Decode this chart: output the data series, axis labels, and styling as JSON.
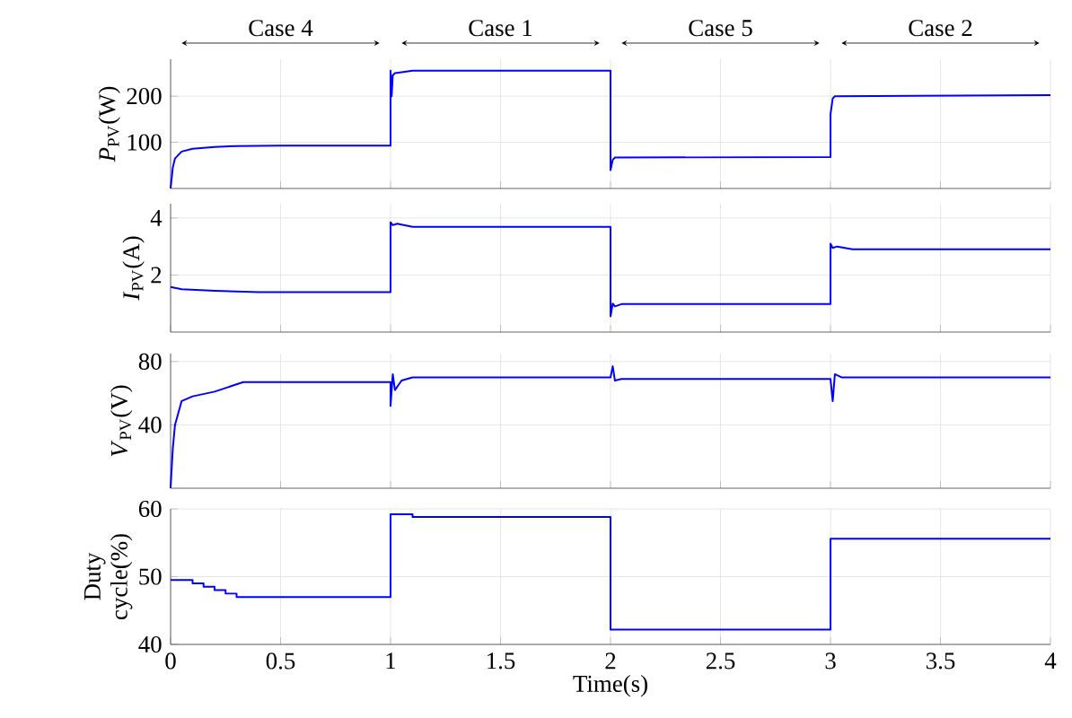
{
  "chart_data": [
    {
      "type": "line",
      "ylabel": "*P*$_{PV}$(W)",
      "xlim": [
        0,
        4
      ],
      "xticks": [
        0,
        0.5,
        1,
        1.5,
        2,
        2.5,
        3,
        3.5,
        4
      ],
      "ylim": [
        0,
        280
      ],
      "yticks": [
        100,
        200
      ],
      "grid": true,
      "tick_labels": "y",
      "annotations": [
        "Case 4",
        "Case 1",
        "Case 5",
        "Case 2"
      ],
      "series": [
        {
          "color": "#0000ff",
          "x": [
            0,
            0.01,
            0.02,
            0.05,
            0.1,
            0.2,
            0.3,
            0.5,
            1,
            1,
            1.005,
            1.01,
            1.02,
            1.05,
            1.1,
            2,
            2,
            2.01,
            2.02,
            3,
            3,
            3.01,
            3.02,
            4
          ],
          "values": [
            0,
            45,
            65,
            80,
            86,
            90,
            92,
            93,
            93,
            255,
            200,
            245,
            250,
            252,
            255,
            255,
            40,
            62,
            67,
            68,
            160,
            195,
            200,
            202
          ]
        }
      ]
    },
    {
      "type": "line",
      "ylabel": "*I*$_{PV}$(A)",
      "xlim": [
        0,
        4
      ],
      "xticks": [
        0,
        0.5,
        1,
        1.5,
        2,
        2.5,
        3,
        3.5,
        4
      ],
      "ylim": [
        0,
        4.5
      ],
      "yticks": [
        2,
        4
      ],
      "grid": true,
      "tick_labels": "y",
      "series": [
        {
          "color": "#0000ff",
          "x": [
            0,
            0.05,
            0.2,
            0.4,
            1,
            1,
            1.01,
            1.03,
            1.1,
            2,
            2,
            2.01,
            2.02,
            2.05,
            3,
            3,
            3.01,
            3.03,
            3.1,
            4
          ],
          "values": [
            1.58,
            1.5,
            1.45,
            1.4,
            1.4,
            3.85,
            3.75,
            3.8,
            3.69,
            3.69,
            0.55,
            1.0,
            0.9,
            0.98,
            0.98,
            3.1,
            2.95,
            3.0,
            2.9,
            2.9
          ]
        }
      ]
    },
    {
      "type": "line",
      "ylabel": "*V*$_{PV}$(V)",
      "xlim": [
        0,
        4
      ],
      "xticks": [
        0,
        0.5,
        1,
        1.5,
        2,
        2.5,
        3,
        3.5,
        4
      ],
      "ylim": [
        0,
        85
      ],
      "yticks": [
        40,
        80
      ],
      "grid": true,
      "tick_labels": "y",
      "series": [
        {
          "color": "#0000ff",
          "x": [
            0,
            0.01,
            0.02,
            0.05,
            0.1,
            0.2,
            0.33,
            1,
            1,
            1.01,
            1.02,
            1.05,
            1.1,
            2,
            2.01,
            2.02,
            2.05,
            3,
            3.01,
            3.02,
            3.05,
            4
          ],
          "values": [
            0,
            25,
            40,
            55,
            58,
            61,
            67,
            67,
            52,
            72,
            62,
            68,
            70,
            70,
            77,
            68,
            69,
            69,
            55,
            72,
            70,
            70
          ]
        }
      ]
    },
    {
      "type": "step",
      "ylabel": "Duty cycle(%)",
      "xlabel": "Time(s)",
      "xlim": [
        0,
        4
      ],
      "xticks": [
        0,
        0.5,
        1,
        1.5,
        2,
        2.5,
        3,
        3.5,
        4
      ],
      "ylim": [
        40,
        60
      ],
      "yticks": [
        40,
        50,
        60
      ],
      "grid": true,
      "series": [
        {
          "color": "#0000ff",
          "x": [
            0,
            0.1,
            0.15,
            0.2,
            0.25,
            0.3,
            1,
            1.1,
            2,
            3,
            4
          ],
          "values": [
            49.5,
            49,
            48.5,
            48,
            47.5,
            47,
            59.2,
            58.8,
            42.2,
            55.6,
            55.6
          ]
        }
      ]
    }
  ]
}
